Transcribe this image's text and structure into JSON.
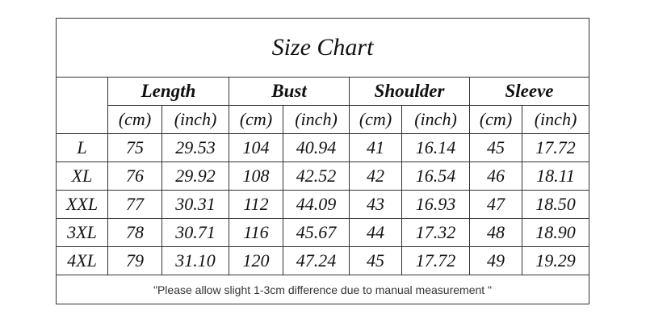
{
  "title": "Size Chart",
  "table": {
    "groups": [
      "Length",
      "Bust",
      "Shoulder",
      "Sleeve"
    ],
    "units": [
      "(cm)",
      "(inch)",
      "(cm)",
      "(inch)",
      "(cm)",
      "(inch)",
      "(cm)",
      "(inch)"
    ],
    "rows": [
      [
        "L",
        "75",
        "29.53",
        "104",
        "40.94",
        "41",
        "16.14",
        "45",
        "17.72"
      ],
      [
        "XL",
        "76",
        "29.92",
        "108",
        "42.52",
        "42",
        "16.54",
        "46",
        "18.11"
      ],
      [
        "XXL",
        "77",
        "30.31",
        "112",
        "44.09",
        "43",
        "16.93",
        "47",
        "18.50"
      ],
      [
        "3XL",
        "78",
        "30.71",
        "116",
        "45.67",
        "44",
        "17.32",
        "48",
        "18.90"
      ],
      [
        "4XL",
        "79",
        "31.10",
        "120",
        "47.24",
        "45",
        "17.72",
        "49",
        "19.29"
      ]
    ]
  },
  "footnote": "\"Please allow slight 1-3cm difference due to manual measurement \""
}
